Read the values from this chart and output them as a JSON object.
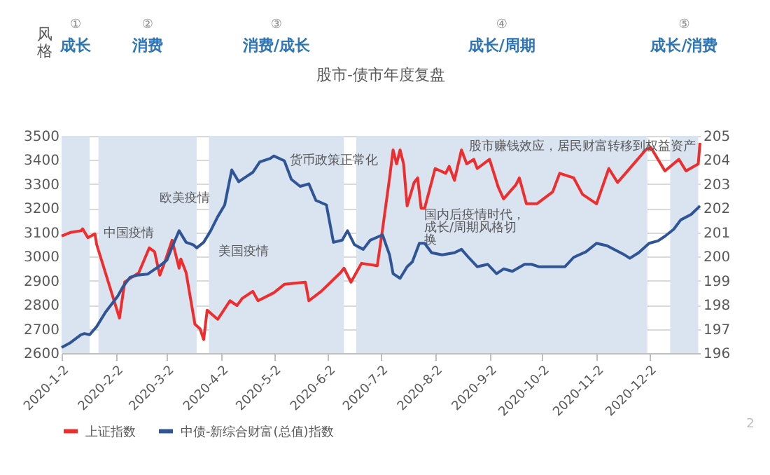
{
  "chart_data": {
    "type": "line",
    "title": "股市-债市年度复盘",
    "x": [
      "2020-01-02",
      "2020-01-07",
      "2020-01-13",
      "2020-01-14",
      "2020-01-17",
      "2020-01-21",
      "2020-01-22",
      "2020-02-04",
      "2020-02-07",
      "2020-02-15",
      "2020-02-21",
      "2020-02-24",
      "2020-02-27",
      "2020-03-01",
      "2020-03-05",
      "2020-03-09",
      "2020-03-10",
      "2020-03-13",
      "2020-03-18",
      "2020-03-21",
      "2020-03-23",
      "2020-03-25",
      "2020-03-31",
      "2020-04-07",
      "2020-04-11",
      "2020-04-14",
      "2020-04-20",
      "2020-04-23",
      "2020-05-02",
      "2020-05-08",
      "2020-05-20",
      "2020-05-22",
      "2020-05-29",
      "2020-06-09",
      "2020-06-11",
      "2020-06-15",
      "2020-06-21",
      "2020-06-30",
      "2020-07-03",
      "2020-07-07",
      "2020-07-09",
      "2020-07-11",
      "2020-07-13",
      "2020-07-15",
      "2020-07-17",
      "2020-07-21",
      "2020-07-23",
      "2020-07-25",
      "2020-07-27",
      "2020-08-02",
      "2020-08-08",
      "2020-08-10",
      "2020-08-13",
      "2020-08-17",
      "2020-08-20",
      "2020-08-24",
      "2020-08-26",
      "2020-09-02",
      "2020-09-07",
      "2020-09-10",
      "2020-09-17",
      "2020-09-19",
      "2020-09-23",
      "2020-09-29",
      "2020-10-08",
      "2020-10-12",
      "2020-10-20",
      "2020-10-25",
      "2020-11-02",
      "2020-11-09",
      "2020-11-14",
      "2020-11-22",
      "2020-11-30",
      "2020-12-03",
      "2020-12-11",
      "2020-12-19",
      "2020-12-23",
      "2020-12-30",
      "2020-12-31"
    ],
    "series": [
      {
        "name": "上证指数",
        "color": "#ee2e2e",
        "values": [
          3085,
          3100,
          3107,
          3115,
          3078,
          3094,
          3050,
          2745,
          2895,
          2933,
          3036,
          3020,
          2923,
          2981,
          3068,
          2952,
          2990,
          2933,
          2720,
          2700,
          2656,
          2778,
          2740,
          2817,
          2797,
          2827,
          2856,
          2817,
          2850,
          2885,
          2894,
          2817,
          2856,
          2933,
          2952,
          2894,
          2972,
          2962,
          3113,
          3326,
          3442,
          3384,
          3442,
          3384,
          3210,
          3307,
          3326,
          3200,
          3200,
          3365,
          3345,
          3374,
          3316,
          3442,
          3384,
          3403,
          3365,
          3403,
          3287,
          3239,
          3297,
          3326,
          3219,
          3219,
          3268,
          3345,
          3326,
          3258,
          3219,
          3365,
          3307,
          3374,
          3442,
          3452,
          3355,
          3403,
          3355,
          3384,
          3471
        ]
      },
      {
        "name": "中债-新综合财富(总值)指数",
        "color": "#2f5597",
        "axis": "y2",
        "x": [
          "2020-01-02",
          "2020-01-07",
          "2020-01-13",
          "2020-01-15",
          "2020-01-18",
          "2020-01-22",
          "2020-01-27",
          "2020-02-03",
          "2020-02-06",
          "2020-02-10",
          "2020-02-14",
          "2020-02-20",
          "2020-02-27",
          "2020-03-02",
          "2020-03-05",
          "2020-03-09",
          "2020-03-13",
          "2020-03-17",
          "2020-03-19",
          "2020-03-23",
          "2020-03-27",
          "2020-03-31",
          "2020-04-04",
          "2020-04-08",
          "2020-04-12",
          "2020-04-16",
          "2020-04-20",
          "2020-04-24",
          "2020-04-30",
          "2020-05-02",
          "2020-05-08",
          "2020-05-12",
          "2020-05-17",
          "2020-05-22",
          "2020-05-26",
          "2020-06-01",
          "2020-06-05",
          "2020-06-10",
          "2020-06-13",
          "2020-06-17",
          "2020-06-22",
          "2020-06-26",
          "2020-07-03",
          "2020-07-07",
          "2020-07-09",
          "2020-07-13",
          "2020-07-17",
          "2020-07-20",
          "2020-07-24",
          "2020-07-27",
          "2020-07-31",
          "2020-08-06",
          "2020-08-13",
          "2020-08-17",
          "2020-08-21",
          "2020-08-26",
          "2020-09-01",
          "2020-09-06",
          "2020-09-10",
          "2020-09-15",
          "2020-09-22",
          "2020-09-26",
          "2020-09-30",
          "2020-10-09",
          "2020-10-15",
          "2020-10-20",
          "2020-10-27",
          "2020-11-02",
          "2020-11-08",
          "2020-11-13",
          "2020-11-18",
          "2020-11-21",
          "2020-11-26",
          "2020-12-02",
          "2020-12-07",
          "2020-12-11",
          "2020-12-16",
          "2020-12-20",
          "2020-12-26",
          "2020-12-31"
        ],
        "values": [
          196.23,
          196.43,
          196.76,
          196.81,
          196.76,
          197.1,
          197.69,
          198.36,
          198.75,
          199.14,
          199.23,
          199.27,
          199.62,
          199.85,
          200.39,
          201.07,
          200.59,
          200.49,
          200.36,
          200.59,
          201.07,
          201.65,
          202.14,
          203.59,
          203.1,
          203.3,
          203.49,
          203.92,
          204.07,
          204.17,
          203.97,
          203.2,
          202.91,
          203.01,
          202.33,
          202.14,
          200.59,
          200.68,
          201.07,
          200.49,
          200.3,
          200.68,
          200.9,
          200.07,
          199.29,
          199.1,
          199.58,
          199.78,
          200.55,
          200.55,
          200.16,
          200.07,
          200.16,
          200.3,
          199.97,
          199.58,
          199.68,
          199.29,
          199.49,
          199.39,
          199.68,
          199.68,
          199.58,
          199.58,
          199.58,
          199.97,
          200.2,
          200.55,
          200.45,
          200.26,
          200.07,
          199.93,
          200.16,
          200.55,
          200.65,
          200.84,
          201.13,
          201.52,
          201.75,
          202.1
        ]
      }
    ],
    "xlim": [
      "2020-01-02",
      "2020-12-31"
    ],
    "xticks": [
      {
        "value": "2020-01-02",
        "label": "2020-1-2"
      },
      {
        "value": "2020-02-02",
        "label": "2020-2-2"
      },
      {
        "value": "2020-03-02",
        "label": "2020-3-2"
      },
      {
        "value": "2020-04-02",
        "label": "2020-4-2"
      },
      {
        "value": "2020-05-02",
        "label": "2020-5-2"
      },
      {
        "value": "2020-06-02",
        "label": "2020-6-2"
      },
      {
        "value": "2020-07-02",
        "label": "2020-7-2"
      },
      {
        "value": "2020-08-02",
        "label": "2020-8-2"
      },
      {
        "value": "2020-09-02",
        "label": "2020-9-2"
      },
      {
        "value": "2020-10-02",
        "label": "2020-10-2"
      },
      {
        "value": "2020-11-02",
        "label": "2020-11-2"
      },
      {
        "value": "2020-12-02",
        "label": "2020-12-2"
      }
    ],
    "ylim": [
      2600,
      3500
    ],
    "yticks": [
      2600,
      2700,
      2800,
      2900,
      3000,
      3100,
      3200,
      3300,
      3400,
      3500
    ],
    "y2lim": [
      196,
      205
    ],
    "y2ticks": [
      196,
      197,
      198,
      199,
      200,
      201,
      202,
      203,
      204,
      205
    ],
    "bands": [
      {
        "axis": "x",
        "from": "2020-01-02",
        "to": "2020-01-18",
        "label": "①\n成长",
        "color": "#dae3f0"
      },
      {
        "axis": "x",
        "from": "2020-01-23",
        "to": "2020-03-19",
        "label": "②\n消费",
        "color": "#dae3f0"
      },
      {
        "axis": "x",
        "from": "2020-03-26",
        "to": "2020-06-11",
        "label": "③\n消费/成长",
        "color": "#dae3f0"
      },
      {
        "axis": "x",
        "from": "2020-06-18",
        "to": "2020-12-01",
        "label": "④\n成长/周期",
        "color": "#dae3f0"
      },
      {
        "axis": "x",
        "from": "2020-12-14",
        "to": "2020-12-30",
        "label": "⑤\n成长/消费",
        "color": "#dae3f0"
      }
    ],
    "annotations": [
      "风格",
      "2",
      "中国疫情",
      "欧美疫情",
      "美国疫情",
      "货币政策正常化",
      "国内后疫情时代，成长/周期风格切换",
      "股市赚钱效应，居民财富转移到权益资产"
    ],
    "grid": "y",
    "legend": "bottom"
  }
}
